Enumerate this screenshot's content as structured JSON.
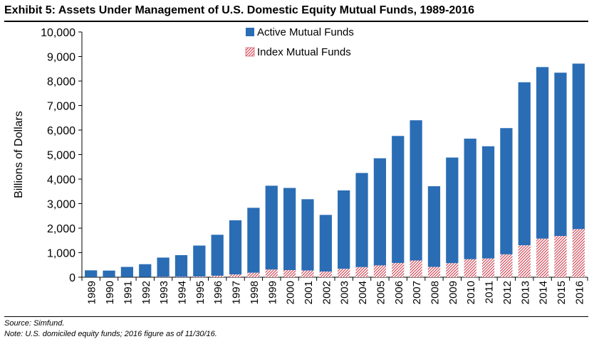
{
  "header": {
    "title": "Exhibit 5: Assets Under Management of U.S. Domestic Equity Mutual Funds, 1989-2016"
  },
  "footer": {
    "source": "Source: Simfund.",
    "note": "Note: U.S. domiciled equity funds; 2016 figure as of 11/30/16."
  },
  "colors": {
    "active": "#2a6db5",
    "index_stripe": "#d0394a"
  },
  "chart_data": {
    "type": "bar",
    "stacked": true,
    "title": "",
    "xlabel": "",
    "ylabel": "Billions of Dollars",
    "ylim": [
      0,
      10000
    ],
    "yticks": [
      "0",
      "1,000",
      "2,000",
      "3,000",
      "4,000",
      "5,000",
      "6,000",
      "7,000",
      "8,000",
      "9,000",
      "10,000"
    ],
    "legend_position": "top-center",
    "grid": false,
    "categories": [
      "1989",
      "1990",
      "1991",
      "1992",
      "1993",
      "1994",
      "1995",
      "1996",
      "1997",
      "1998",
      "1999",
      "2000",
      "2001",
      "2002",
      "2003",
      "2004",
      "2005",
      "2006",
      "2007",
      "2008",
      "2009",
      "2010",
      "2011",
      "2012",
      "2013",
      "2014",
      "2015",
      "2016"
    ],
    "series": [
      {
        "name": "Index Mutual Funds",
        "values": [
          3,
          3,
          5,
          8,
          12,
          15,
          25,
          60,
          110,
          180,
          310,
          290,
          270,
          230,
          340,
          410,
          480,
          580,
          680,
          420,
          570,
          730,
          760,
          930,
          1300,
          1570,
          1680,
          1960
        ]
      },
      {
        "name": "Active Mutual Funds",
        "values": [
          277,
          267,
          415,
          522,
          788,
          885,
          1265,
          1670,
          2210,
          2650,
          3420,
          3350,
          2910,
          2310,
          3200,
          3840,
          4370,
          5180,
          5720,
          3290,
          4310,
          4920,
          4580,
          5150,
          6650,
          7000,
          6660,
          6750
        ]
      }
    ]
  }
}
